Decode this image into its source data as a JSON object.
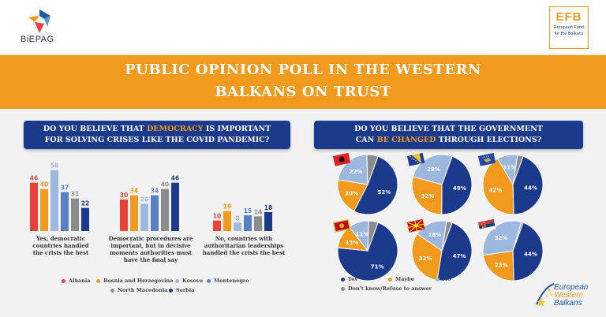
{
  "logos": {
    "biepag": "BiEPAG",
    "efb_big": "EFB",
    "efb_small_1": "European Fund",
    "efb_small_2": "for the Balkans",
    "ewb_1": "European",
    "ewb_2": "Western",
    "ewb_3": "Balkans"
  },
  "banner": {
    "line1": "PUBLIC OPINION POLL IN THE WESTERN",
    "line2": "BALKANS ON TRUST"
  },
  "question_left": {
    "pre": "DO YOU BELIEVE THAT ",
    "hl": "DEMOCRACY",
    "post": " IS IMPORTANT",
    "line2": "FOR SOLVING CRISES LIKE THE COVID PANDEMIC?"
  },
  "question_right": {
    "line1": "DO YOU BELIEVE THAT THE GOVERNMENT",
    "pre2": "CAN ",
    "hl2": "BE CHANGED",
    "post2": " THROUGH ELECTIONS?"
  },
  "colors": {
    "albania": "#e8413a",
    "bih": "#f29a1e",
    "kosovo": "#9db8de",
    "montenegro": "#5b7fc4",
    "north_macedonia": "#8c8c8c",
    "serbia": "#1b3a8c",
    "yes": "#1b3a8c",
    "maybe": "#f29a1e",
    "no": "#9db8de",
    "dk": "#8c8c8c"
  },
  "chart_data": [
    {
      "type": "bar",
      "categories": [
        "Yes, democratic countries handled the crisis the best",
        "Democratic procedures are important, but in decisive moments authorities must have the final say",
        "No, countries with authoritarian leaderships handled the crisis the best"
      ],
      "category_lines": [
        [
          "Yes, democratic",
          "countries handled",
          "the crisis the best"
        ],
        [
          "Democratic procedures are",
          "important, but in decisive",
          "moments authorities must",
          "have the final say"
        ],
        [
          "No, countries with",
          "authoritarian leaderships",
          "handled the crisis the best"
        ]
      ],
      "series": [
        {
          "name": "Albania",
          "color": "#e8413a",
          "values": [
            46,
            30,
            10
          ]
        },
        {
          "name": "Bosnia and Herzegovina",
          "color": "#f29a1e",
          "values": [
            40,
            34,
            19
          ]
        },
        {
          "name": "Kosovo",
          "color": "#9db8de",
          "values": [
            58,
            26,
            8
          ]
        },
        {
          "name": "Montenegro",
          "color": "#5b7fc4",
          "values": [
            37,
            34,
            15
          ]
        },
        {
          "name": "North Macedonia",
          "color": "#8c8c8c",
          "values": [
            31,
            40,
            14
          ]
        },
        {
          "name": "Serbia",
          "color": "#1b3a8c",
          "values": [
            22,
            46,
            18
          ]
        }
      ],
      "ylim": [
        0,
        60
      ]
    },
    {
      "type": "pie",
      "legend": [
        "Yes",
        "Maybe",
        "No",
        "Don't know/Refuse to answer"
      ],
      "legend_colors": [
        "#1b3a8c",
        "#f29a1e",
        "#9db8de",
        "#8c8c8c"
      ],
      "pies": [
        {
          "country": "Albania",
          "flag": "albania-flag",
          "labels": [
            "52%",
            "20%",
            "22%",
            ""
          ],
          "values": [
            52,
            20,
            22,
            6
          ]
        },
        {
          "country": "Bosnia and Herzegovina",
          "flag": "bih-flag",
          "labels": [
            "49%",
            "32%",
            "29%",
            ""
          ],
          "values": [
            49,
            32,
            29,
            0
          ]
        },
        {
          "country": "Kosovo",
          "flag": "kosovo-flag",
          "labels": [
            "44%",
            "42%",
            "11%",
            ""
          ],
          "values": [
            44,
            42,
            11,
            3
          ]
        },
        {
          "country": "Montenegro",
          "flag": "montenegro-flag",
          "labels": [
            "71%",
            "13%",
            "11%",
            ""
          ],
          "values": [
            71,
            13,
            11,
            5
          ]
        },
        {
          "country": "North Macedonia",
          "flag": "north-macedonia-flag",
          "labels": [
            "47%",
            "32%",
            "18%",
            ""
          ],
          "values": [
            47,
            32,
            18,
            3
          ]
        },
        {
          "country": "Serbia",
          "flag": "serbia-flag",
          "labels": [
            "44%",
            "23%",
            "32%",
            ""
          ],
          "values": [
            44,
            23,
            32,
            1
          ]
        }
      ]
    }
  ]
}
